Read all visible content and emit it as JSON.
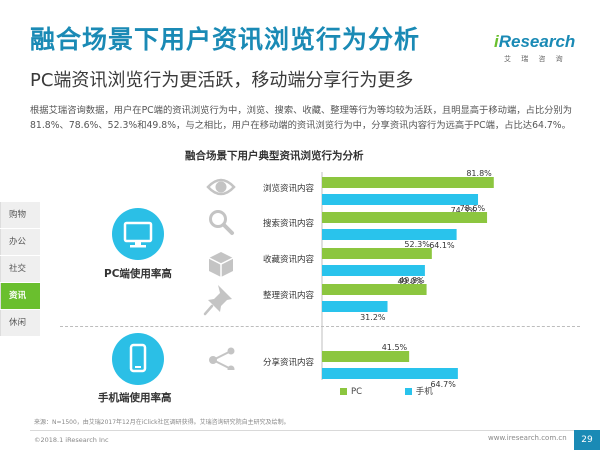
{
  "header": {
    "title": "融合场景下用户资讯浏览行为分析",
    "subtitle": "PC端资讯浏览行为更活跃，移动端分享行为更多",
    "description": "根据艾瑞咨询数据，用户在PC端的资讯浏览行为中，浏览、搜索、收藏、整理等行为等均较为活跃，且明显高于移动端，占比分别为81.8%、78.6%、52.3%和49.8%，与之相比，用户在移动端的资讯浏览行为中，分享资讯内容行为远高于PC端，占比达64.7%。"
  },
  "logo": {
    "brand_i": "i",
    "brand_rest": "Research",
    "cn": "艾 瑞 咨 询"
  },
  "side_nav": {
    "items": [
      {
        "label": "购物",
        "active": false
      },
      {
        "label": "办公",
        "active": false
      },
      {
        "label": "社交",
        "active": false
      },
      {
        "label": "资讯",
        "active": true
      },
      {
        "label": "休闲",
        "active": false
      }
    ]
  },
  "devices": {
    "pc_caption": "PC端使用率高",
    "mobile_caption": "手机端使用率高"
  },
  "colors": {
    "pc": "#8cc63f",
    "mobile": "#29c3ec",
    "accent": "#1a8ab5",
    "icon": "#c4c4c4"
  },
  "chart_data": {
    "type": "bar",
    "title": "融合场景下用户典型资讯浏览行为分析",
    "categories": [
      "浏览资讯内容",
      "搜索资讯内容",
      "收藏资讯内容",
      "整理资讯内容",
      "分享资讯内容"
    ],
    "category_icons": [
      "eye-icon",
      "search-icon",
      "box-icon",
      "pin-icon",
      "share-icon"
    ],
    "series": [
      {
        "name": "PC",
        "values": [
          81.8,
          78.6,
          52.3,
          49.8,
          41.5
        ]
      },
      {
        "name": "手机",
        "values": [
          74.3,
          64.1,
          49.0,
          31.2,
          64.7
        ]
      }
    ],
    "value_suffix": "%",
    "xlim": [
      0,
      100
    ],
    "legend_position": "bottom"
  },
  "footer": {
    "source": "来源：N=1500，由艾瑞2017年12月在iClick社区调研获得。艾瑞咨询研究院自主研究及绘制。",
    "copyright": "©2018.1 iResearch Inc",
    "url": "www.iresearch.com.cn",
    "page": "29"
  }
}
